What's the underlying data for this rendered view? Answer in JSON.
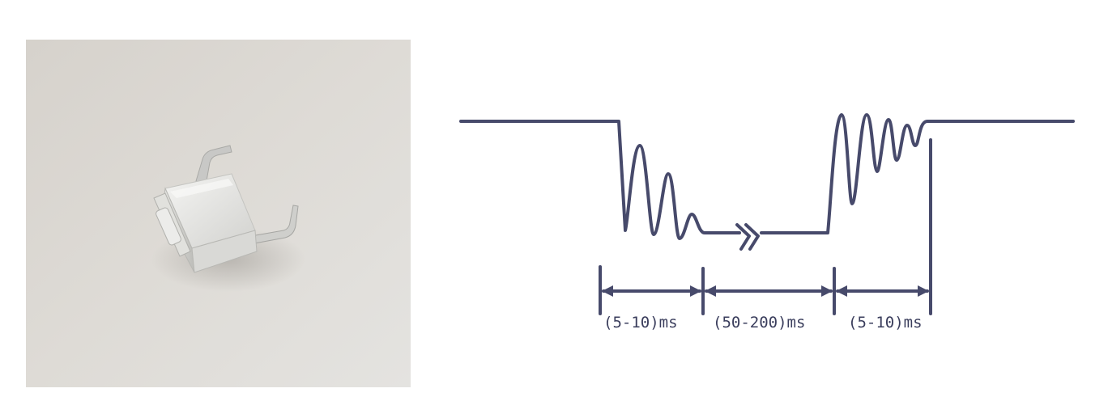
{
  "photo": {
    "subject": "tactile push button switch",
    "background_color": "#dcd9d4",
    "button_color": "#e9e9e6",
    "lead_color": "#c9c9c9"
  },
  "diagram": {
    "stroke_color": "#474a6b",
    "labels": {
      "press_bounce": "(5-10)ms",
      "stable": "(50-200)ms",
      "release_bounce": "(5-10)ms"
    }
  }
}
